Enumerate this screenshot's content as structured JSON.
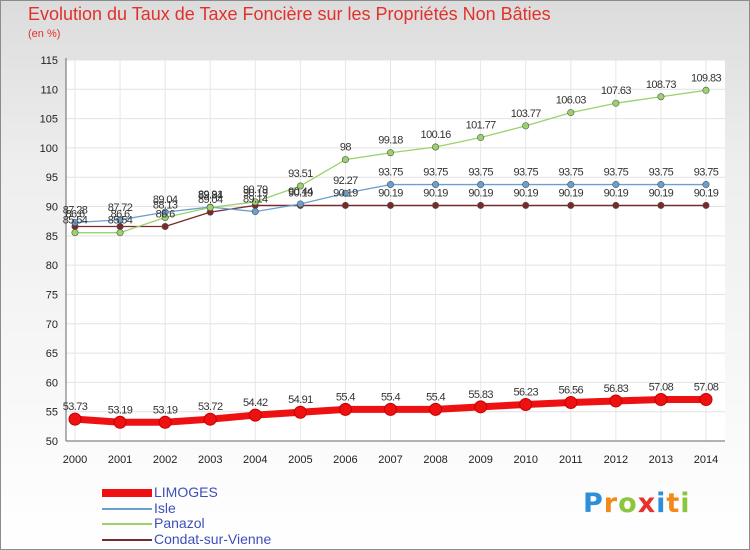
{
  "title": "Evolution du Taux de Taxe Foncière sur les Propriétés Non Bâties",
  "unit_label": "(en %)",
  "logo": {
    "letters": [
      {
        "ch": "P",
        "color": "#2c8fd8"
      },
      {
        "ch": "r",
        "color": "#f28a1b"
      },
      {
        "ch": "o",
        "color": "#8cc63f"
      },
      {
        "ch": "x",
        "color": "#e8312a"
      },
      {
        "ch": "i",
        "color": "#2c8fd8"
      },
      {
        "ch": "t",
        "color": "#f28a1b"
      },
      {
        "ch": "i",
        "color": "#8cc63f"
      }
    ]
  },
  "chart_data": {
    "type": "line",
    "title": "Evolution du Taux de Taxe Foncière sur les Propriétés Non Bâties",
    "ylabel": "(en %)",
    "xlabel": "",
    "x": [
      "2000",
      "2001",
      "2002",
      "2003",
      "2004",
      "2005",
      "2006",
      "2007",
      "2008",
      "2009",
      "2010",
      "2011",
      "2012",
      "2013",
      "2014"
    ],
    "ylim": [
      50,
      115
    ],
    "yticks": [
      "50",
      "55",
      "60",
      "65",
      "70",
      "75",
      "80",
      "85",
      "90",
      "95",
      "100",
      "105",
      "110",
      "115"
    ],
    "grid": true,
    "legend_position": "bottom-left",
    "series": [
      {
        "name": "LIMOGES",
        "color": "#ee1111",
        "values": [
          53.73,
          53.19,
          53.19,
          53.72,
          54.42,
          54.91,
          55.4,
          55.4,
          55.4,
          55.83,
          56.23,
          56.56,
          56.83,
          57.08,
          57.08
        ],
        "labels": [
          "53.73",
          "53.19",
          "53.19",
          "53.72",
          "54.42",
          "54.91",
          "55.4",
          "55.4",
          "55.4",
          "55.83",
          "56.23",
          "56.56",
          "56.83",
          "57.08",
          "57.08"
        ]
      },
      {
        "name": "Isle",
        "color": "#6aa0d0",
        "values": [
          87.28,
          87.72,
          89.04,
          89.91,
          89.14,
          90.44,
          92.27,
          93.75,
          93.75,
          93.75,
          93.75,
          93.75,
          93.75,
          93.75,
          93.75
        ],
        "labels": [
          "87.28",
          "87.72",
          "89.04",
          "89.91",
          "89.14",
          "90.44",
          "92.27",
          "93.75",
          "93.75",
          "93.75",
          "93.75",
          "93.75",
          "93.75",
          "93.75",
          "93.75"
        ]
      },
      {
        "name": "Panazol",
        "color": "#9ad36a",
        "values": [
          85.54,
          85.54,
          88.13,
          89.84,
          90.79,
          93.51,
          98,
          99.18,
          100.16,
          101.77,
          103.77,
          106.03,
          107.63,
          108.73,
          109.83
        ],
        "labels": [
          "85.54",
          "85.54",
          "88.13",
          "89.84",
          "90.79",
          "93.51",
          "98",
          "99.18",
          "100.16",
          "101.77",
          "103.77",
          "106.03",
          "107.63",
          "108.73",
          "109.83"
        ]
      },
      {
        "name": "Condat-sur-Vienne",
        "color": "#7a2a2a",
        "values": [
          86.6,
          86.6,
          86.6,
          89.04,
          90.19,
          90.19,
          90.19,
          90.19,
          90.19,
          90.19,
          90.19,
          90.19,
          90.19,
          90.19,
          90.19
        ],
        "labels": [
          "86.6",
          "86.6",
          "86.6",
          "89.04",
          "90.19",
          "90.19",
          "90.19",
          "90.19",
          "90.19",
          "90.19",
          "90.19",
          "90.19",
          "90.19",
          "90.19",
          "90.19"
        ]
      }
    ]
  }
}
